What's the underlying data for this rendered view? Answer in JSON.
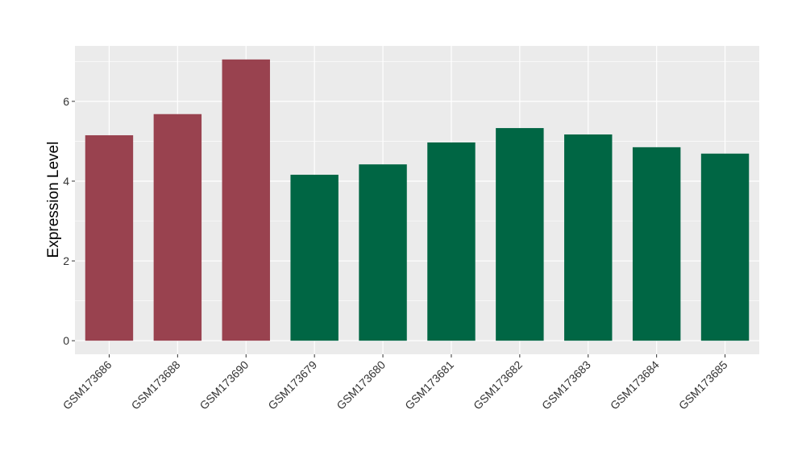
{
  "chart_data": {
    "type": "bar",
    "title": "",
    "xlabel": "",
    "ylabel": "Expression Level",
    "ylim": [
      -0.34,
      7.39
    ],
    "yticks": [
      0,
      2,
      4,
      6
    ],
    "grid": true,
    "legend": "none",
    "categories": [
      "GSM173686",
      "GSM173688",
      "GSM173690",
      "GSM173679",
      "GSM173680",
      "GSM173681",
      "GSM173682",
      "GSM173683",
      "GSM173684",
      "GSM173685"
    ],
    "values": [
      5.15,
      5.68,
      7.05,
      4.16,
      4.42,
      4.97,
      5.33,
      5.17,
      4.85,
      4.69
    ],
    "bar_colors": [
      "#99424F",
      "#99424F",
      "#99424F",
      "#006644",
      "#006644",
      "#006644",
      "#006644",
      "#006644",
      "#006644",
      "#006644"
    ],
    "panel_background": "#EBEBEB",
    "grid_color": "#FFFFFF"
  }
}
